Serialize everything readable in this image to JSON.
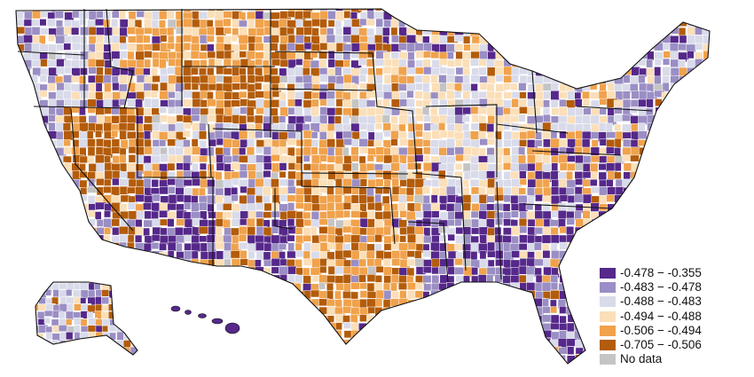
{
  "map": {
    "region": "Contiguous United States, Alaska and Hawaii",
    "unit": "county",
    "state_border_color": "#111111",
    "county_border_color": "#ffffff"
  },
  "legend": {
    "placement": "bottom-right",
    "items": [
      {
        "id": "c1",
        "label": "-0.478 − -0.355",
        "color": "#55288a"
      },
      {
        "id": "c2",
        "label": "-0.483 − -0.478",
        "color": "#9a8ec4"
      },
      {
        "id": "c3",
        "label": "-0.488 − -0.483",
        "color": "#d9dbea"
      },
      {
        "id": "c4",
        "label": "-0.494 − -0.488",
        "color": "#fbdfb8"
      },
      {
        "id": "c5",
        "label": "-0.506 − -0.494",
        "color": "#f0a24c"
      },
      {
        "id": "c6",
        "label": "-0.705 − -0.506",
        "color": "#b35c0b"
      },
      {
        "id": "nd",
        "label": "No data",
        "color": "#c4c4c4"
      }
    ]
  }
}
